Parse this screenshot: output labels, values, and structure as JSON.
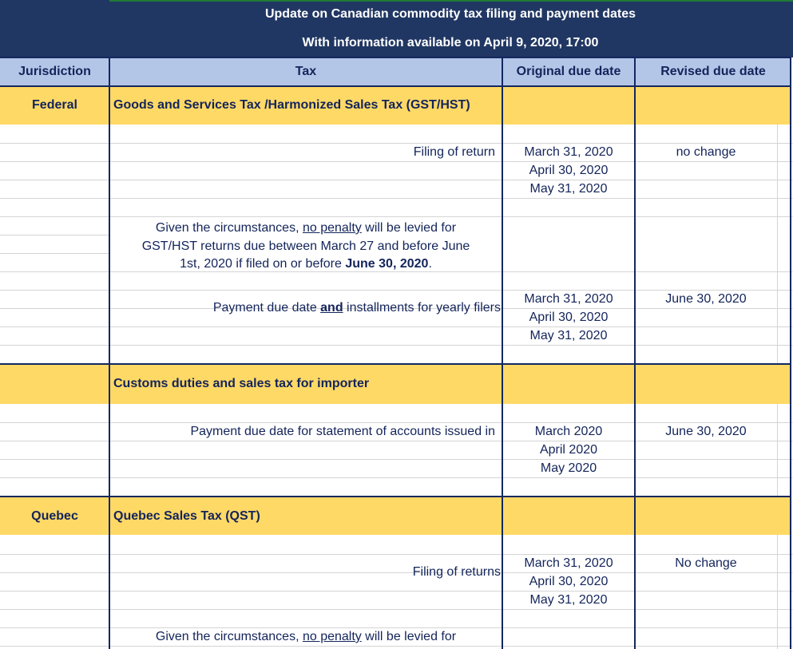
{
  "title": {
    "line1": "Update on Canadian commodity tax filing and payment dates",
    "line2": "With information available on April 9, 2020, 17:00"
  },
  "columns": [
    "Jurisdiction",
    "Tax",
    "Original due date",
    "Revised due date"
  ],
  "sections": [
    {
      "jurisdiction": "Federal",
      "tax": "Goods and Services Tax /Harmonized Sales Tax (GST/HST)",
      "filing_label": "Filing of return",
      "filing_dates": [
        "March 31, 2020",
        "April 30, 2020",
        "May 31, 2020"
      ],
      "filing_revised": "no change",
      "note": {
        "l1a": "Given the circumstances, ",
        "l1u": "no penalty",
        "l1b": " will be levied for",
        "l2": "GST/HST returns due between March 27 and before June",
        "l3a": "1st, 2020 if filed on or before ",
        "l3b": "June 30, 2020",
        "l3c": "."
      },
      "payment_label_a": "Payment due date ",
      "payment_label_u": "and",
      "payment_label_b": " installments for yearly filers",
      "payment_dates": [
        "March 31, 2020",
        "April 30, 2020",
        "May 31, 2020"
      ],
      "payment_revised": "June 30, 2020"
    },
    {
      "jurisdiction": "",
      "tax": "Customs duties and sales tax for importer",
      "payment_label": "Payment due date for statement of accounts issued in",
      "payment_dates": [
        "March 2020",
        "April 2020",
        "May 2020"
      ],
      "payment_revised": "June 30, 2020"
    },
    {
      "jurisdiction": "Quebec",
      "tax": "Quebec Sales Tax (QST)",
      "filing_label": "Filing of returns",
      "filing_dates": [
        "March 31, 2020",
        "April 30, 2020",
        "May 31, 2020"
      ],
      "filing_revised": "No change",
      "note": {
        "l1a": "Given the circumstances, ",
        "l1u": "no penalty",
        "l1b": " will be levied for"
      }
    }
  ],
  "colors": {
    "title_bg": "#213763",
    "header_bg": "#b4c6e7",
    "section_bg": "#ffd966",
    "text": "#13245a"
  }
}
